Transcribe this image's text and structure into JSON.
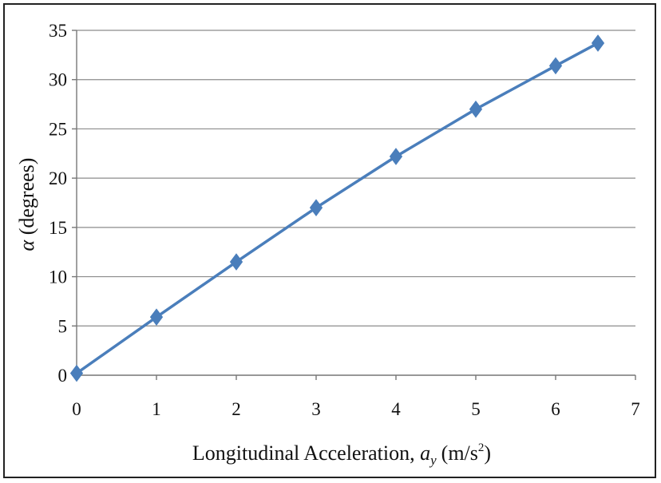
{
  "chart_data": {
    "type": "line",
    "title": "",
    "xlabel": "Longitudinal Acceleration,",
    "xlabel_var": "a",
    "xlabel_var_sub": "y",
    "xlabel_unit_pre": "(m/s",
    "xlabel_unit_sup": "2",
    "xlabel_unit_post": ")",
    "ylabel_var": "α",
    "ylabel": "(degrees)",
    "xlim": [
      0,
      7
    ],
    "ylim": [
      0,
      35
    ],
    "x_ticks": [
      0,
      1,
      2,
      3,
      4,
      5,
      6,
      7
    ],
    "y_ticks": [
      0,
      5,
      10,
      15,
      20,
      25,
      30,
      35
    ],
    "grid": "horizontal",
    "legend": "none",
    "marker": "diamond",
    "series_color": "#4a7ebb",
    "series": [
      {
        "x": [
          0,
          1,
          2,
          3,
          4,
          5,
          6,
          6.53
        ],
        "y": [
          0.2,
          5.9,
          11.5,
          17.0,
          22.2,
          27.0,
          31.4,
          33.7
        ]
      }
    ]
  }
}
